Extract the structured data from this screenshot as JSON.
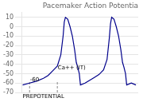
{
  "chart_data": {
    "type": "line",
    "title": "Pacemaker Action Potentia",
    "x": [
      0.0,
      0.3,
      0.6,
      0.9,
      1.1,
      1.3,
      1.5,
      1.65,
      1.75,
      1.8,
      1.85,
      1.95,
      2.05,
      2.15,
      2.25,
      2.32,
      2.38,
      2.45,
      2.5,
      2.7,
      2.9,
      3.1,
      3.3,
      3.5,
      3.65,
      3.75,
      3.8,
      3.85,
      3.95,
      4.05,
      4.15,
      4.25,
      4.32,
      4.38,
      4.45,
      4.5,
      4.7,
      4.9
    ],
    "values": [
      -62,
      -60,
      -58,
      -55,
      -52,
      -47,
      -42,
      -30,
      -10,
      5,
      10,
      8,
      0,
      -10,
      -25,
      -38,
      -43,
      -50,
      -62,
      -60,
      -57,
      -54,
      -51,
      -46,
      -35,
      -12,
      3,
      10,
      8,
      0,
      -10,
      -25,
      -38,
      -43,
      -50,
      -62,
      -60,
      -62
    ],
    "color": "#00008B",
    "xlim": [
      -0.05,
      5.0
    ],
    "ylim": [
      -70,
      15
    ],
    "yticks": [
      10,
      0,
      -10,
      -20,
      -30,
      -40,
      -50,
      -60,
      -70
    ],
    "grid": true,
    "tick_labels": "y",
    "annotations": [
      {
        "text": "-60",
        "x": 0.32,
        "y": -58
      },
      {
        "text": "Ca++ (IT)",
        "x": 1.52,
        "y": -45
      },
      {
        "text": "PREPOTENTIAL",
        "x": 0.9,
        "y": -76
      }
    ],
    "vlines": [
      {
        "x": 0.3,
        "color": "#888888",
        "line_style": "dashed"
      },
      {
        "x": 1.5,
        "color": "#888888",
        "line_style": "dashed"
      }
    ]
  }
}
